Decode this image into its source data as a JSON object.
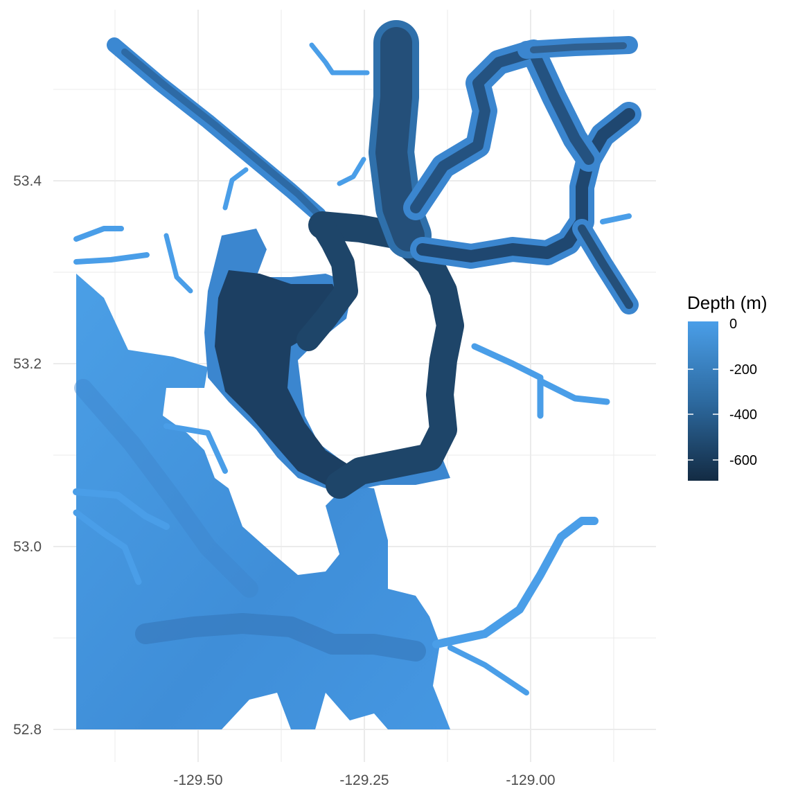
{
  "chart_data": {
    "type": "heatmap",
    "subtype": "bathymetry-map",
    "title": "",
    "xlabel": "",
    "ylabel": "",
    "x_ticks": [
      "-129.50",
      "-129.25",
      "-129.00"
    ],
    "x_tick_values": [
      -129.5,
      -129.25,
      -129.0
    ],
    "y_ticks": [
      "52.8",
      "53.0",
      "53.2",
      "53.4"
    ],
    "y_tick_values": [
      52.8,
      53.0,
      53.2,
      53.4
    ],
    "xlim": [
      -129.75,
      -128.87
    ],
    "ylim": [
      52.77,
      53.7
    ],
    "grid": true,
    "legend": {
      "title": "Depth (m)",
      "position": "right",
      "labels": [
        "0",
        "-200",
        "-400",
        "-600"
      ],
      "values": [
        0,
        -200,
        -400,
        -600
      ],
      "range": [
        -690,
        0
      ],
      "colors": {
        "shallow": "#4a9ee8",
        "mid": "#2f6fa6",
        "deep": "#132b43"
      }
    },
    "data_range": {
      "lon": [
        -129.65,
        -128.92
      ],
      "lat": [
        52.8,
        53.55
      ]
    }
  }
}
